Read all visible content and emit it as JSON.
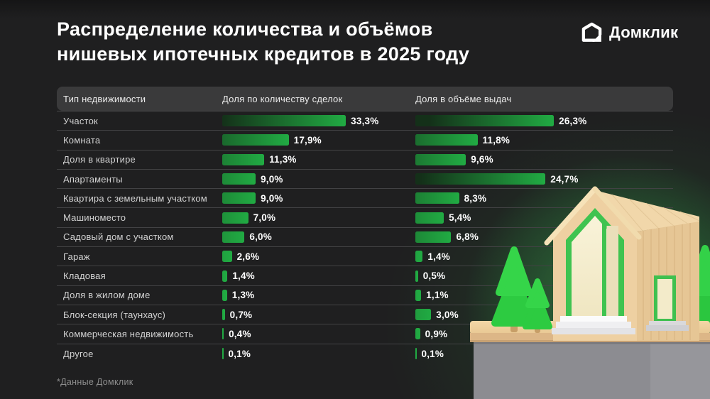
{
  "title": {
    "line1": "Распределение количества и объёмов",
    "line2": "нишевых ипотечных кредитов в 2025 году"
  },
  "logo": {
    "name": "Домклик"
  },
  "table": {
    "headers": {
      "type": "Тип недвижимости",
      "count": "Доля по количеству сделок",
      "volume": "Доля в объёме выдач"
    },
    "rows": [
      {
        "label": "Участок",
        "count": 33.3,
        "count_label": "33,3%",
        "volume": 26.3,
        "volume_label": "26,3%"
      },
      {
        "label": "Комната",
        "count": 17.9,
        "count_label": "17,9%",
        "volume": 11.8,
        "volume_label": "11,8%"
      },
      {
        "label": "Доля в квартире",
        "count": 11.3,
        "count_label": "11,3%",
        "volume": 9.6,
        "volume_label": "9,6%"
      },
      {
        "label": "Апартаменты",
        "count": 9.0,
        "count_label": "9,0%",
        "volume": 24.7,
        "volume_label": "24,7%"
      },
      {
        "label": "Квартира с земельным участком",
        "count": 9.0,
        "count_label": "9,0%",
        "volume": 8.3,
        "volume_label": "8,3%"
      },
      {
        "label": "Машиноместо",
        "count": 7.0,
        "count_label": "7,0%",
        "volume": 5.4,
        "volume_label": "5,4%"
      },
      {
        "label": "Садовый дом с участком",
        "count": 6.0,
        "count_label": "6,0%",
        "volume": 6.8,
        "volume_label": "6,8%"
      },
      {
        "label": "Гараж",
        "count": 2.6,
        "count_label": "2,6%",
        "volume": 1.4,
        "volume_label": "1,4%"
      },
      {
        "label": "Кладовая",
        "count": 1.4,
        "count_label": "1,4%",
        "volume": 0.5,
        "volume_label": "0,5%"
      },
      {
        "label": "Доля в жилом доме",
        "count": 1.3,
        "count_label": "1,3%",
        "volume": 1.1,
        "volume_label": "1,1%"
      },
      {
        "label": "Блок-секция (таунхаус)",
        "count": 0.7,
        "count_label": "0,7%",
        "volume": 3.0,
        "volume_label": "3,0%"
      },
      {
        "label": "Коммерческая недвижимость",
        "count": 0.4,
        "count_label": "0,4%",
        "volume": 0.9,
        "volume_label": "0,9%"
      },
      {
        "label": "Другое",
        "count": 0.1,
        "count_label": "0,1%",
        "volume": 0.1,
        "volume_label": "0,1%"
      }
    ]
  },
  "footer": {
    "note": "*Данные Домклик"
  },
  "colors": {
    "bar_gradient_start": "#143019",
    "bar_gradient_end": "#21ab43",
    "accent_green": "#21a038",
    "header_bg": "#3a3a3b",
    "background": "#1f1f20"
  },
  "chart_data": {
    "type": "bar",
    "orientation": "horizontal",
    "title": "Распределение количества и объёмов нишевых ипотечных кредитов в 2025 году",
    "unit": "%",
    "categories": [
      "Участок",
      "Комната",
      "Доля в квартире",
      "Апартаменты",
      "Квартира с земельным участком",
      "Машиноместо",
      "Садовый дом с участком",
      "Гараж",
      "Кладовая",
      "Доля в жилом доме",
      "Блок-секция (таунхаус)",
      "Коммерческая недвижимость",
      "Другое"
    ],
    "series": [
      {
        "name": "Доля по количеству сделок",
        "values": [
          33.3,
          17.9,
          11.3,
          9.0,
          9.0,
          7.0,
          6.0,
          2.6,
          1.4,
          1.3,
          0.7,
          0.4,
          0.1
        ]
      },
      {
        "name": "Доля в объёме выдач",
        "values": [
          26.3,
          11.8,
          9.6,
          24.7,
          8.3,
          5.4,
          6.8,
          1.4,
          0.5,
          1.1,
          3.0,
          0.9,
          0.1
        ]
      }
    ],
    "value_labels": [
      [
        "33,3%",
        "17,9%",
        "11,3%",
        "9,0%",
        "9,0%",
        "7,0%",
        "6,0%",
        "2,6%",
        "1,4%",
        "1,3%",
        "0,7%",
        "0,4%",
        "0,1%"
      ],
      [
        "26,3%",
        "11,8%",
        "9,6%",
        "24,7%",
        "8,3%",
        "5,4%",
        "6,8%",
        "1,4%",
        "0,5%",
        "1,1%",
        "3,0%",
        "0,9%",
        "0,1%"
      ]
    ],
    "legend_position": "table-header",
    "grid": false,
    "source": "*Данные Домклик"
  }
}
